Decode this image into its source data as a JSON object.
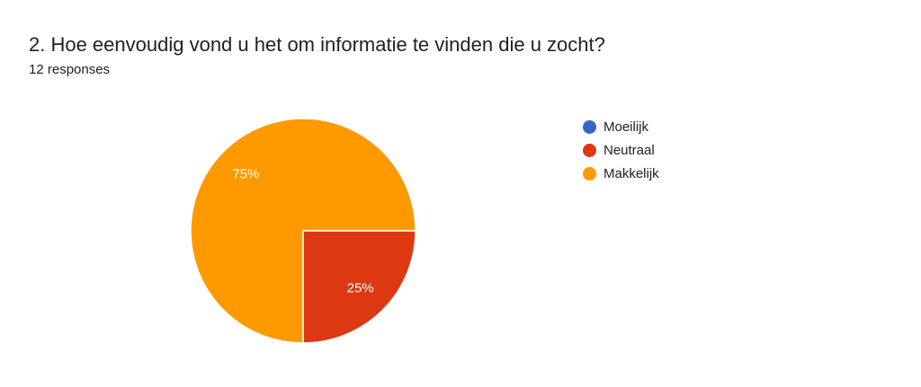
{
  "question": {
    "title": "2. Hoe eenvoudig vond u het om informatie te vinden die u zocht?",
    "responses": "12 responses"
  },
  "chart_data": {
    "type": "pie",
    "title": "2. Hoe eenvoudig vond u het om informatie te vinden die u zocht?",
    "categories": [
      "Moeilijk",
      "Neutraal",
      "Makkelijk"
    ],
    "values": [
      0,
      3,
      9
    ],
    "percent_labels": [
      "0%",
      "25%",
      "75%"
    ],
    "colors": [
      "#3366cc",
      "#dc3912",
      "#ff9900"
    ],
    "legend_position": "right"
  }
}
